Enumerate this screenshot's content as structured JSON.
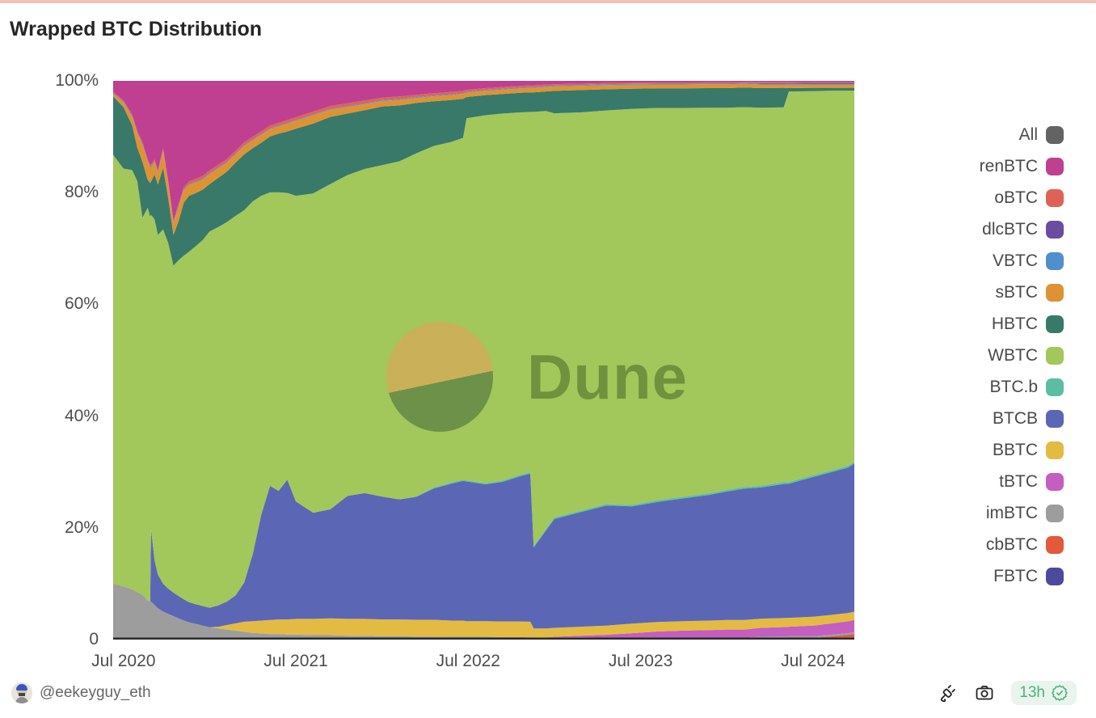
{
  "page": {
    "top_strip_color": "#f1c3b3"
  },
  "header": {
    "title": "Wrapped BTC Distribution"
  },
  "watermark": {
    "text": "Dune"
  },
  "legend": {
    "items": [
      {
        "label": "All",
        "color": "#636363"
      },
      {
        "label": "renBTC",
        "color": "#bf3f90"
      },
      {
        "label": "oBTC",
        "color": "#de6356"
      },
      {
        "label": "dlcBTC",
        "color": "#6a4da0"
      },
      {
        "label": "VBTC",
        "color": "#4f8fcc"
      },
      {
        "label": "sBTC",
        "color": "#dd9334"
      },
      {
        "label": "HBTC",
        "color": "#38796a"
      },
      {
        "label": "WBTC",
        "color": "#a2c75a"
      },
      {
        "label": "BTC.b",
        "color": "#5cbda4"
      },
      {
        "label": "BTCB",
        "color": "#5b67b4"
      },
      {
        "label": "BBTC",
        "color": "#e3bb42"
      },
      {
        "label": "tBTC",
        "color": "#c45ec0"
      },
      {
        "label": "imBTC",
        "color": "#9d9d9d"
      },
      {
        "label": "cbBTC",
        "color": "#e2593c"
      },
      {
        "label": "FBTC",
        "color": "#4c4a9c"
      }
    ]
  },
  "footer": {
    "author": "@eekeyguy_eth",
    "badge": "13h",
    "icons": [
      "plug-icon",
      "camera-icon",
      "verified-seal-icon"
    ],
    "badge_color": "#51b27e"
  },
  "chart_data": {
    "type": "area",
    "stacked": true,
    "percent": true,
    "title": "Wrapped BTC Distribution",
    "grid": false,
    "legend_position": "right",
    "ylim": [
      0,
      100
    ],
    "y_ticks": [
      "100%",
      "80%",
      "60%",
      "40%",
      "20%",
      "0"
    ],
    "y_tick_values": [
      100,
      80,
      60,
      40,
      20,
      0
    ],
    "x_tick_labels": [
      "Jul 2020",
      "Jul 2021",
      "Jul 2022",
      "Jul 2023",
      "Jul 2024"
    ],
    "x_tick_positions": [
      2020.5,
      2021.5,
      2022.5,
      2023.5,
      2024.5
    ],
    "x": [
      2020.44,
      2020.5,
      2020.55,
      2020.58,
      2020.61,
      2020.64,
      2020.655,
      2020.66,
      2020.68,
      2020.7,
      2020.73,
      2020.76,
      2020.79,
      2020.82,
      2020.85,
      2020.88,
      2020.92,
      2020.96,
      2021.0,
      2021.05,
      2021.1,
      2021.15,
      2021.2,
      2021.25,
      2021.3,
      2021.35,
      2021.4,
      2021.45,
      2021.5,
      2021.6,
      2021.7,
      2021.8,
      2021.9,
      2022.0,
      2022.1,
      2022.2,
      2022.3,
      2022.4,
      2022.47,
      2022.49,
      2022.6,
      2022.7,
      2022.8,
      2022.86,
      2022.88,
      2022.95,
      2023.0,
      2023.15,
      2023.3,
      2023.45,
      2023.6,
      2023.75,
      2023.9,
      2024.0,
      2024.1,
      2024.2,
      2024.33,
      2024.36,
      2024.5,
      2024.6,
      2024.7,
      2024.74
    ],
    "series": [
      {
        "name": "FBTC",
        "color": "#4c4a9c",
        "values": [
          0,
          0,
          0,
          0,
          0,
          0,
          0,
          0,
          0,
          0,
          0,
          0,
          0,
          0,
          0,
          0,
          0,
          0,
          0,
          0,
          0,
          0,
          0,
          0,
          0,
          0,
          0,
          0,
          0,
          0,
          0,
          0,
          0,
          0,
          0,
          0,
          0,
          0,
          0,
          0,
          0,
          0,
          0,
          0,
          0,
          0,
          0,
          0,
          0,
          0,
          0,
          0,
          0,
          0,
          0,
          0.2,
          0.25,
          0.3,
          0.3,
          0.35,
          0.4,
          0.4
        ]
      },
      {
        "name": "cbBTC",
        "color": "#e2593c",
        "values": [
          0,
          0,
          0,
          0,
          0,
          0,
          0,
          0,
          0,
          0,
          0,
          0,
          0,
          0,
          0,
          0,
          0,
          0,
          0,
          0,
          0,
          0,
          0,
          0,
          0,
          0,
          0,
          0,
          0,
          0,
          0,
          0,
          0,
          0,
          0,
          0,
          0,
          0,
          0,
          0,
          0,
          0,
          0,
          0,
          0,
          0,
          0,
          0,
          0,
          0,
          0,
          0,
          0,
          0,
          0,
          0,
          0,
          0,
          0,
          0.2,
          0.45,
          0.6
        ]
      },
      {
        "name": "imBTC",
        "color": "#9d9d9d",
        "values": [
          10,
          9.5,
          9,
          8.5,
          8,
          7,
          6.8,
          6.8,
          6.2,
          5.6,
          5,
          4.6,
          4.2,
          3.8,
          3.4,
          3.1,
          2.8,
          2.5,
          2.2,
          2,
          1.8,
          1.6,
          1.4,
          1.2,
          1.1,
          1,
          1,
          0.9,
          0.9,
          0.8,
          0.8,
          0.7,
          0.7,
          0.6,
          0.6,
          0.55,
          0.55,
          0.5,
          0.5,
          0.5,
          0.5,
          0.45,
          0.45,
          0.4,
          0.4,
          0.4,
          0.4,
          0.4,
          0.35,
          0.35,
          0.35,
          0.3,
          0.3,
          0.3,
          0.3,
          0.3,
          0.3,
          0.3,
          0.3,
          0.3,
          0.3,
          0.3
        ]
      },
      {
        "name": "tBTC",
        "color": "#c45ec0",
        "values": [
          0,
          0,
          0,
          0,
          0,
          0,
          0,
          0,
          0,
          0,
          0,
          0,
          0,
          0,
          0,
          0,
          0,
          0,
          0,
          0,
          0,
          0,
          0,
          0,
          0,
          0,
          0,
          0,
          0,
          0,
          0,
          0,
          0,
          0,
          0,
          0,
          0,
          0,
          0,
          0,
          0,
          0,
          0,
          0,
          0,
          0,
          0.1,
          0.3,
          0.5,
          0.8,
          1.1,
          1.3,
          1.4,
          1.5,
          1.5,
          1.6,
          1.7,
          1.7,
          1.9,
          2,
          2.1,
          2.2
        ]
      },
      {
        "name": "BBTC",
        "color": "#e3bb42",
        "values": [
          0,
          0,
          0,
          0,
          0,
          0,
          0,
          0,
          0,
          0,
          0,
          0,
          0,
          0,
          0,
          0,
          0,
          0,
          0,
          0.3,
          0.8,
          1.3,
          1.8,
          2.1,
          2.3,
          2.5,
          2.6,
          2.7,
          2.8,
          2.9,
          3,
          3,
          3,
          3,
          3,
          3,
          3,
          2.9,
          2.9,
          2.8,
          2.8,
          2.8,
          2.8,
          2.8,
          1.6,
          1.6,
          1.6,
          1.6,
          1.65,
          1.7,
          1.7,
          1.7,
          1.7,
          1.7,
          1.7,
          1.65,
          1.6,
          1.6,
          1.6,
          1.55,
          1.5,
          1.5
        ]
      },
      {
        "name": "BTCB",
        "color": "#5b67b4",
        "values": [
          0,
          0,
          0,
          0,
          0,
          0,
          0,
          13,
          8,
          6,
          5,
          4.5,
          4.2,
          4,
          3.8,
          3.6,
          3.5,
          3.5,
          3.5,
          3.8,
          4.2,
          5,
          7,
          12,
          19,
          24,
          23,
          25,
          21,
          19,
          19.5,
          22,
          22.5,
          22,
          21.5,
          22,
          23.5,
          24.5,
          25,
          25,
          24.5,
          25,
          26,
          26.5,
          14.5,
          17.5,
          19.5,
          20.5,
          21.5,
          21,
          21.5,
          22,
          22.5,
          23,
          23.5,
          23.5,
          24,
          24,
          25,
          25.5,
          26,
          26.5
        ]
      },
      {
        "name": "BTC.b",
        "color": "#5cbda4",
        "values": [
          0,
          0,
          0,
          0,
          0,
          0,
          0,
          0,
          0,
          0,
          0,
          0,
          0,
          0,
          0,
          0,
          0,
          0,
          0,
          0,
          0,
          0,
          0,
          0,
          0,
          0,
          0,
          0,
          0,
          0,
          0,
          0,
          0,
          0,
          0,
          0.1,
          0.2,
          0.2,
          0.2,
          0.2,
          0.2,
          0.25,
          0.25,
          0.25,
          0.25,
          0.25,
          0.25,
          0.25,
          0.25,
          0.25,
          0.3,
          0.3,
          0.3,
          0.3,
          0.3,
          0.3,
          0.3,
          0.3,
          0.3,
          0.3,
          0.3,
          0.3
        ]
      },
      {
        "name": "WBTC",
        "color": "#a2c75a",
        "values": [
          76.8,
          74.8,
          75,
          73.5,
          67.5,
          70.3,
          68.9,
          56.2,
          61,
          60.8,
          63.4,
          61.8,
          58.5,
          60.1,
          61.5,
          62.7,
          64.1,
          65.5,
          67.3,
          67.7,
          67.9,
          67.9,
          66.6,
          63.1,
          57,
          52.5,
          53.4,
          51.3,
          54.7,
          57.1,
          58.2,
          57.4,
          58,
          59.3,
          60.5,
          61.4,
          61.1,
          61,
          61.2,
          64.8,
          65.9,
          65.7,
          64.9,
          64.5,
          77.7,
          74.9,
          72.4,
          71.3,
          70.5,
          70.9,
          70.2,
          69.6,
          69,
          68.4,
          68,
          67.7,
          67.1,
          69.9,
          68.8,
          68,
          67.2,
          66.5
        ]
      },
      {
        "name": "HBTC",
        "color": "#38796a",
        "values": [
          10.5,
          11,
          8,
          6,
          10,
          5,
          6,
          6,
          8,
          9,
          11,
          8,
          5.5,
          7,
          9.5,
          10,
          9.5,
          9,
          8.5,
          8.8,
          9,
          9.5,
          10,
          9.5,
          9.5,
          10,
          10.5,
          11,
          12,
          12.5,
          12,
          11,
          10.5,
          10.5,
          10,
          9,
          8,
          7.5,
          7,
          3.8,
          3.6,
          3.5,
          3.5,
          3.5,
          3.5,
          3.5,
          4,
          4,
          3.8,
          3.6,
          3.5,
          3.5,
          3.5,
          3.5,
          3.5,
          3.5,
          3.5,
          0.6,
          0.6,
          0.5,
          0.5,
          0.5
        ]
      },
      {
        "name": "sBTC",
        "color": "#dd9334",
        "values": [
          0.4,
          0.8,
          1.5,
          2.5,
          3,
          3.2,
          2.8,
          2.5,
          2.2,
          2,
          3,
          2.5,
          2,
          2.5,
          2.2,
          2,
          1.9,
          1.8,
          1.8,
          1.7,
          1.6,
          1.5,
          1.5,
          1.4,
          1.4,
          1.3,
          1.3,
          1.4,
          1.4,
          1.5,
          1.3,
          1.2,
          1.1,
          1,
          1,
          0.9,
          0.9,
          0.9,
          0.9,
          0.8,
          0.8,
          0.8,
          0.8,
          0.8,
          0.8,
          0.8,
          0.8,
          0.75,
          0.75,
          0.7,
          0.7,
          0.7,
          0.7,
          0.7,
          0.65,
          0.65,
          0.6,
          0.6,
          0.6,
          0.6,
          0.6,
          0.6
        ]
      },
      {
        "name": "VBTC",
        "color": "#4f8fcc",
        "values": [
          0.15,
          0.15,
          0.15,
          0.15,
          0.15,
          0.15,
          0.15,
          0.15,
          0.15,
          0.15,
          0.15,
          0.15,
          0.15,
          0.15,
          0.15,
          0.15,
          0.15,
          0.15,
          0.15,
          0.15,
          0.15,
          0.15,
          0.15,
          0.15,
          0.15,
          0.15,
          0.15,
          0.15,
          0.15,
          0.15,
          0.15,
          0.15,
          0.15,
          0.15,
          0.15,
          0.15,
          0.15,
          0.15,
          0.15,
          0.15,
          0.15,
          0.15,
          0.15,
          0.15,
          0.15,
          0.15,
          0.15,
          0.15,
          0.15,
          0.15,
          0.15,
          0.15,
          0.15,
          0.15,
          0.15,
          0.15,
          0.15,
          0.15,
          0.15,
          0.15,
          0.15,
          0.15
        ]
      },
      {
        "name": "dlcBTC",
        "color": "#6a4da0",
        "values": [
          0,
          0,
          0,
          0,
          0,
          0,
          0,
          0,
          0,
          0,
          0,
          0,
          0,
          0,
          0,
          0,
          0,
          0,
          0,
          0,
          0,
          0,
          0,
          0,
          0,
          0,
          0,
          0,
          0,
          0,
          0,
          0,
          0,
          0,
          0,
          0,
          0,
          0,
          0,
          0,
          0,
          0,
          0,
          0,
          0,
          0,
          0,
          0,
          0,
          0,
          0,
          0,
          0,
          0,
          0,
          0.1,
          0.1,
          0.15,
          0.15,
          0.15,
          0.15,
          0.15
        ]
      },
      {
        "name": "oBTC",
        "color": "#de6356",
        "values": [
          0.2,
          0.25,
          0.3,
          0.3,
          0.35,
          0.35,
          0.35,
          0.35,
          0.4,
          0.4,
          0.4,
          0.4,
          0.4,
          0.45,
          0.45,
          0.45,
          0.5,
          0.5,
          0.5,
          0.5,
          0.5,
          0.5,
          0.5,
          0.5,
          0.5,
          0.5,
          0.5,
          0.5,
          0.5,
          0.5,
          0.5,
          0.5,
          0.5,
          0.45,
          0.45,
          0.4,
          0.4,
          0.4,
          0.35,
          0.35,
          0.3,
          0.3,
          0.3,
          0.3,
          0.3,
          0.25,
          0.25,
          0.25,
          0.2,
          0.2,
          0.2,
          0.2,
          0.2,
          0.2,
          0.2,
          0.2,
          0.2,
          0.2,
          0.15,
          0.15,
          0.15,
          0.15
        ]
      },
      {
        "name": "renBTC",
        "color": "#bf3f90",
        "values": [
          2,
          3.5,
          6,
          9,
          11,
          14,
          15,
          15,
          14,
          16,
          12,
          18,
          25,
          22,
          19,
          18,
          17.5,
          17,
          16,
          15,
          14,
          12.5,
          11,
          10,
          9,
          8,
          7.5,
          7,
          6.5,
          5.5,
          4.5,
          4,
          3.5,
          3,
          2.8,
          2.5,
          2.2,
          2,
          1.8,
          1.6,
          1.3,
          1.1,
          0.9,
          0.8,
          0.8,
          0.7,
          0.6,
          0.5,
          0.4,
          0.35,
          0.3,
          0.3,
          0.25,
          0.25,
          0.2,
          0.2,
          0.2,
          0.2,
          0.2,
          0.2,
          0.2,
          0.2
        ]
      }
    ]
  }
}
